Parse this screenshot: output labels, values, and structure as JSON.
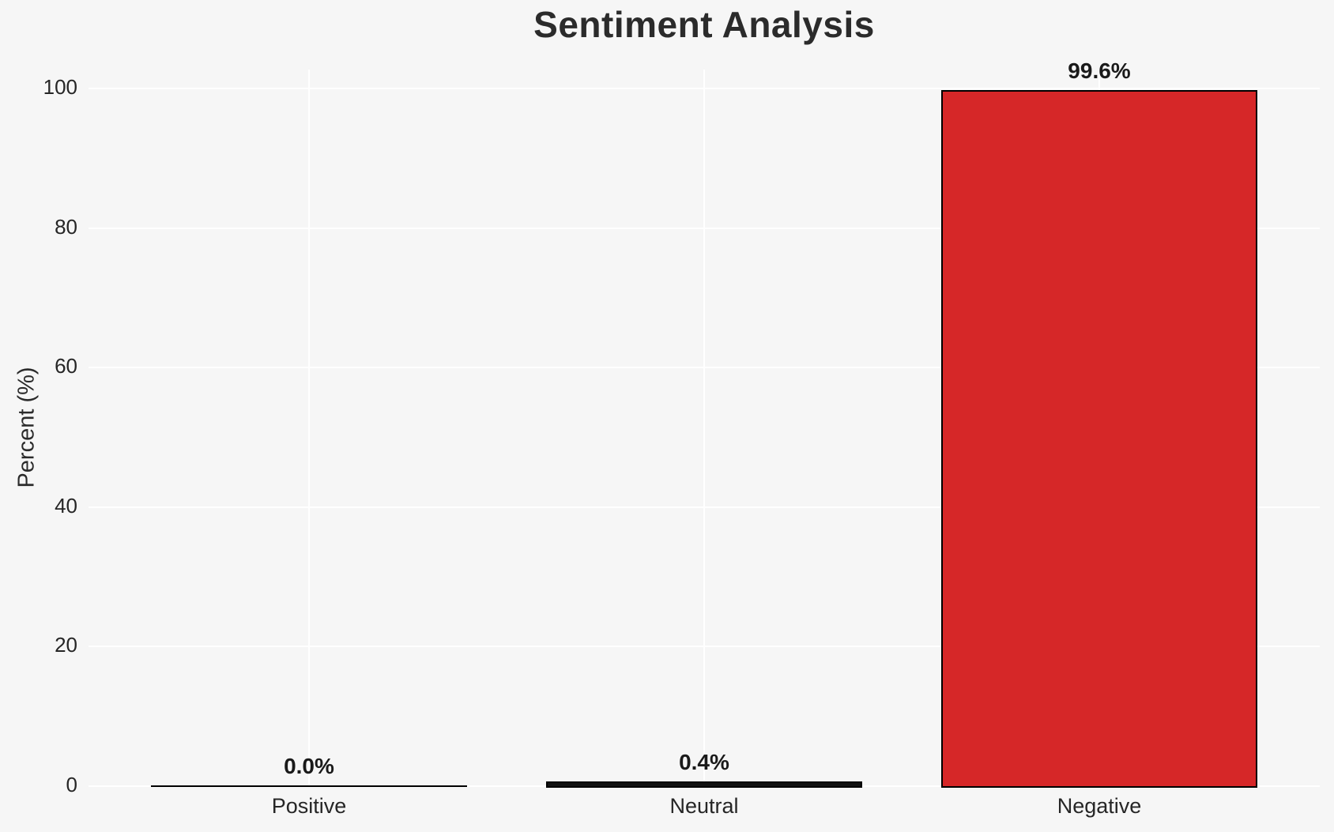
{
  "chart_data": {
    "type": "bar",
    "title": "Sentiment Analysis",
    "ylabel": "Percent (%)",
    "xlabel": "",
    "categories": [
      "Positive",
      "Neutral",
      "Negative"
    ],
    "values": [
      0.0,
      0.4,
      99.6
    ],
    "bar_labels": [
      "0.0%",
      "0.4%",
      "99.6%"
    ],
    "yticks": [
      "0",
      "20",
      "40",
      "60",
      "80",
      "100"
    ],
    "ylim": [
      0,
      100
    ],
    "grid": "on",
    "legend": "none",
    "colors": {
      "bar_fills": [
        "#111111",
        "#111111",
        "#d62728"
      ],
      "bar_edge": "#000000",
      "background": "#f6f6f6",
      "gridline": "#ffffff",
      "text": "#262626"
    }
  }
}
